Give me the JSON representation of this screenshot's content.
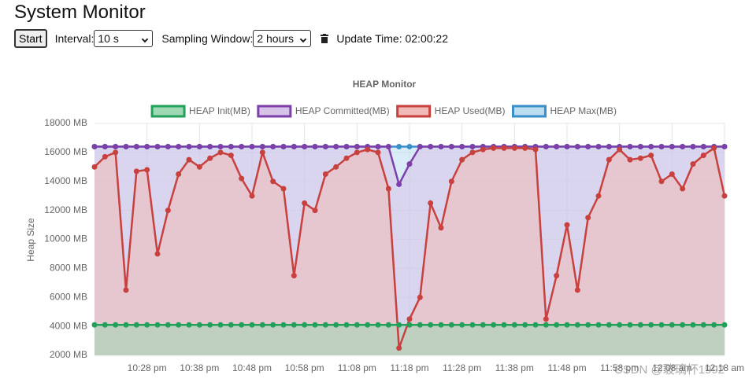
{
  "header": {
    "title": "System Monitor"
  },
  "controls": {
    "start_button": "Start",
    "interval_label": "Interval:",
    "interval_value": "10 s",
    "window_label": "Sampling Window:",
    "window_value": "2 hours",
    "update_time": "Update Time: 02:00:22"
  },
  "watermark": "CSDN @玻璃杯1992",
  "chart_data": {
    "type": "line",
    "title": "HEAP Monitor",
    "y_label": "Heap Size",
    "x": [
      "10:18 pm",
      "10:20 pm",
      "10:22 pm",
      "10:24 pm",
      "10:26 pm",
      "10:28 pm",
      "10:30 pm",
      "10:32 pm",
      "10:34 pm",
      "10:36 pm",
      "10:38 pm",
      "10:40 pm",
      "10:42 pm",
      "10:44 pm",
      "10:46 pm",
      "10:48 pm",
      "10:50 pm",
      "10:52 pm",
      "10:54 pm",
      "10:56 pm",
      "10:58 pm",
      "11:00 pm",
      "11:02 pm",
      "11:04 pm",
      "11:06 pm",
      "11:08 pm",
      "11:10 pm",
      "11:12 pm",
      "11:14 pm",
      "11:16 pm",
      "11:18 pm",
      "11:20 pm",
      "11:22 pm",
      "11:24 pm",
      "11:26 pm",
      "11:28 pm",
      "11:30 pm",
      "11:32 pm",
      "11:34 pm",
      "11:36 pm",
      "11:38 pm",
      "11:40 pm",
      "11:42 pm",
      "11:44 pm",
      "11:46 pm",
      "11:48 pm",
      "11:50 pm",
      "11:52 pm",
      "11:54 pm",
      "11:56 pm",
      "11:58 pm",
      "12:00 am",
      "12:02 am",
      "12:04 am",
      "12:06 am",
      "12:08 am",
      "12:10 am",
      "12:12 am",
      "12:14 am",
      "12:16 am",
      "12:18 am"
    ],
    "xticks": [
      "10:28 pm",
      "10:38 pm",
      "10:48 pm",
      "10:58 pm",
      "11:08 pm",
      "11:18 pm",
      "11:28 pm",
      "11:38 pm",
      "11:48 pm",
      "11:58 pm",
      "12:08 am",
      "12:18 am"
    ],
    "ylim": [
      2000,
      18000
    ],
    "yticks": [
      {
        "value": 2000,
        "label": "2000 MB"
      },
      {
        "value": 4000,
        "label": "4000 MB"
      },
      {
        "value": 6000,
        "label": "6000 MB"
      },
      {
        "value": 8000,
        "label": "8000 MB"
      },
      {
        "value": 10000,
        "label": "10000 MB"
      },
      {
        "value": 12000,
        "label": "12000 MB"
      },
      {
        "value": 14000,
        "label": "14000 MB"
      },
      {
        "value": 16000,
        "label": "16000 MB"
      },
      {
        "value": 18000,
        "label": "18000 MB"
      }
    ],
    "grid": true,
    "series": [
      {
        "name": "HEAP Init(MB)",
        "color": "#23a05a",
        "fill": "#9fd8b5",
        "values": [
          4100,
          4100,
          4100,
          4100,
          4100,
          4100,
          4100,
          4100,
          4100,
          4100,
          4100,
          4100,
          4100,
          4100,
          4100,
          4100,
          4100,
          4100,
          4100,
          4100,
          4100,
          4100,
          4100,
          4100,
          4100,
          4100,
          4100,
          4100,
          4100,
          4100,
          4100,
          4100,
          4100,
          4100,
          4100,
          4100,
          4100,
          4100,
          4100,
          4100,
          4100,
          4100,
          4100,
          4100,
          4100,
          4100,
          4100,
          4100,
          4100,
          4100,
          4100,
          4100,
          4100,
          4100,
          4100,
          4100,
          4100,
          4100,
          4100,
          4100,
          4100
        ]
      },
      {
        "name": "HEAP Committed(MB)",
        "color": "#7d3fa8",
        "fill": "#d8c3e8",
        "values": [
          16400,
          16400,
          16400,
          16400,
          16400,
          16400,
          16400,
          16400,
          16400,
          16400,
          16400,
          16400,
          16400,
          16400,
          16400,
          16400,
          16400,
          16400,
          16400,
          16400,
          16400,
          16400,
          16400,
          16400,
          16400,
          16400,
          16400,
          16400,
          16400,
          13800,
          15200,
          16400,
          16400,
          16400,
          16400,
          16400,
          16400,
          16400,
          16400,
          16400,
          16400,
          16400,
          16400,
          16400,
          16400,
          16400,
          16400,
          16400,
          16400,
          16400,
          16400,
          16400,
          16400,
          16400,
          16400,
          16400,
          16400,
          16400,
          16400,
          16400,
          16400
        ]
      },
      {
        "name": "HEAP Used(MB)",
        "color": "#c8413e",
        "fill": "#f1b9b7",
        "values": [
          15000,
          15700,
          16000,
          6500,
          14700,
          14800,
          9000,
          12000,
          14500,
          15500,
          15000,
          15600,
          16000,
          15800,
          14200,
          13000,
          16000,
          14000,
          13500,
          7500,
          12500,
          12000,
          14500,
          15000,
          15600,
          16000,
          16200,
          16000,
          13500,
          2500,
          4500,
          6000,
          12500,
          10800,
          14000,
          15500,
          16000,
          16200,
          16300,
          16300,
          16300,
          16300,
          16200,
          4500,
          7500,
          11000,
          6500,
          11500,
          13000,
          15500,
          16200,
          15500,
          15600,
          15800,
          14000,
          14500,
          13500,
          15200,
          15800,
          16300,
          13000
        ]
      },
      {
        "name": "HEAP Max(MB)",
        "color": "#3a8fc8",
        "fill": "#bcdcf0",
        "values": [
          16400,
          16400,
          16400,
          16400,
          16400,
          16400,
          16400,
          16400,
          16400,
          16400,
          16400,
          16400,
          16400,
          16400,
          16400,
          16400,
          16400,
          16400,
          16400,
          16400,
          16400,
          16400,
          16400,
          16400,
          16400,
          16400,
          16400,
          16400,
          16400,
          16400,
          16400,
          16400,
          16400,
          16400,
          16400,
          16400,
          16400,
          16400,
          16400,
          16400,
          16400,
          16400,
          16400,
          16400,
          16400,
          16400,
          16400,
          16400,
          16400,
          16400,
          16400,
          16400,
          16400,
          16400,
          16400,
          16400,
          16400,
          16400,
          16400,
          16400,
          16400
        ]
      }
    ]
  }
}
